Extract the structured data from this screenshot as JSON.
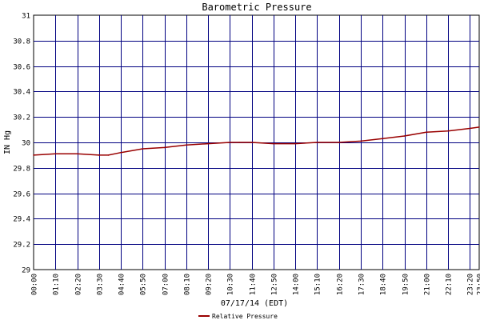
{
  "chart_data": {
    "type": "line",
    "title": "Barometric Pressure",
    "xlabel": "07/17/14 (EDT)",
    "ylabel": "IN Hg",
    "ylim": [
      29,
      31
    ],
    "y_ticks": [
      "29",
      "29.2",
      "29.4",
      "29.6",
      "29.8",
      "30",
      "30.2",
      "30.4",
      "30.6",
      "30.8",
      "31"
    ],
    "x_ticks": [
      "00:00",
      "01:10",
      "02:20",
      "03:30",
      "04:40",
      "05:50",
      "07:00",
      "08:10",
      "09:20",
      "10:30",
      "11:40",
      "12:50",
      "14:00",
      "15:10",
      "16:20",
      "17:30",
      "18:40",
      "19:50",
      "21:00",
      "22:10",
      "23:20",
      "23:50"
    ],
    "grid": true,
    "legend_position": "bottom-left",
    "colors": {
      "grid": "#000080",
      "series": "#990000",
      "axis": "#000000"
    },
    "series": [
      {
        "name": "Relative Pressure",
        "x": [
          "00:00",
          "01:10",
          "02:20",
          "03:30",
          "04:00",
          "04:40",
          "05:50",
          "07:00",
          "08:10",
          "09:20",
          "10:30",
          "11:00",
          "11:40",
          "12:50",
          "14:00",
          "15:10",
          "16:20",
          "17:30",
          "18:40",
          "19:50",
          "21:00",
          "22:10",
          "23:20",
          "23:50"
        ],
        "values": [
          29.9,
          29.91,
          29.91,
          29.9,
          29.9,
          29.92,
          29.95,
          29.96,
          29.98,
          29.99,
          30.0,
          30.0,
          30.0,
          29.99,
          29.99,
          30.0,
          30.0,
          30.01,
          30.03,
          30.05,
          30.08,
          30.09,
          30.11,
          30.12
        ]
      }
    ]
  }
}
